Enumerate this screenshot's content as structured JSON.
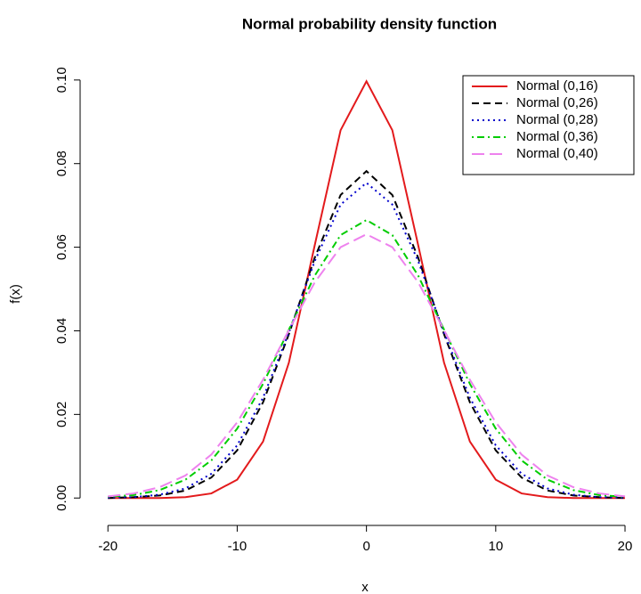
{
  "chart_data": {
    "type": "line",
    "title": "Normal probability density function",
    "x_label": "x",
    "y_label": "f(x)",
    "x": [
      -20,
      -18,
      -16,
      -14,
      -12,
      -10,
      -8,
      -6,
      -4,
      -2,
      0,
      2,
      4,
      6,
      8,
      10,
      12,
      14,
      16,
      18,
      20
    ],
    "series": [
      {
        "name": "Normal (0,16)",
        "color": "#e31a1c",
        "linestyle": "solid",
        "values": [
          0,
          0,
          0,
          0.0002,
          0.0011,
          0.0044,
          0.0135,
          0.0324,
          0.0605,
          0.088,
          0.0997,
          0.088,
          0.0605,
          0.0324,
          0.0135,
          0.0044,
          0.0011,
          0.0002,
          0,
          0,
          0
        ]
      },
      {
        "name": "Normal (0,26)",
        "color": "#000000",
        "linestyle": "dashed",
        "values": [
          0,
          0.0002,
          0.0006,
          0.0018,
          0.0049,
          0.0114,
          0.0229,
          0.0392,
          0.0575,
          0.0725,
          0.0782,
          0.0725,
          0.0575,
          0.0392,
          0.0229,
          0.0114,
          0.0049,
          0.0018,
          0.0006,
          0.0002,
          0
        ]
      },
      {
        "name": "Normal (0,28)",
        "color": "#0000cc",
        "linestyle": "dotted",
        "values": [
          0.0001,
          0.0002,
          0.0008,
          0.0023,
          0.0058,
          0.0126,
          0.024,
          0.0396,
          0.0567,
          0.0702,
          0.0754,
          0.0702,
          0.0567,
          0.0396,
          0.024,
          0.0126,
          0.0058,
          0.0023,
          0.0008,
          0.0002,
          0.0001
        ]
      },
      {
        "name": "Normal (0,36)",
        "color": "#00cc00",
        "linestyle": "dashdot",
        "values": [
          0.0003,
          0.0007,
          0.0019,
          0.0044,
          0.009,
          0.0166,
          0.0273,
          0.0403,
          0.0532,
          0.0629,
          0.0665,
          0.0629,
          0.0532,
          0.0403,
          0.0273,
          0.0166,
          0.009,
          0.0044,
          0.0019,
          0.0007,
          0.0003
        ]
      },
      {
        "name": "Normal (0,40)",
        "color": "#ee82ee",
        "linestyle": "longdash",
        "values": [
          0.0004,
          0.0011,
          0.0026,
          0.0054,
          0.0104,
          0.0181,
          0.0283,
          0.0402,
          0.0516,
          0.06,
          0.0631,
          0.06,
          0.0516,
          0.0402,
          0.0283,
          0.0181,
          0.0104,
          0.0054,
          0.0026,
          0.0011,
          0.0004
        ]
      }
    ],
    "xlim": [
      -21.6,
      21.1
    ],
    "ylim": [
      -0.004,
      0.1038
    ],
    "xticks": [
      -20,
      -10,
      0,
      10,
      20
    ],
    "yticks": [
      {
        "value": 0,
        "label": "0.00"
      },
      {
        "value": 0.02,
        "label": "0.02"
      },
      {
        "value": 0.04,
        "label": "0.04"
      },
      {
        "value": 0.06,
        "label": "0.06"
      },
      {
        "value": 0.08,
        "label": "0.08"
      },
      {
        "value": 0.1,
        "label": "0.10"
      }
    ],
    "legend": "top-right",
    "grid": false
  }
}
